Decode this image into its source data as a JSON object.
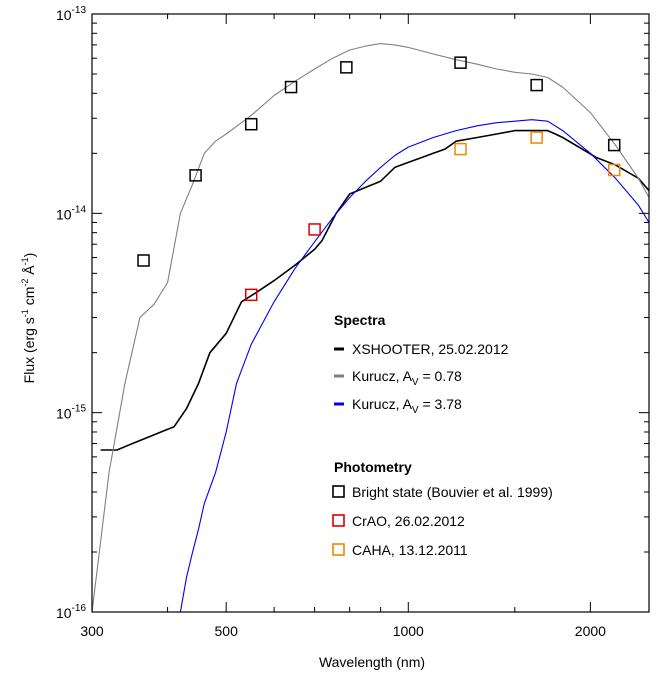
{
  "chart_data": {
    "type": "line",
    "xlabel": "Wavelength (nm)",
    "ylabel": "Flux (erg s⁻¹ cm⁻² Å⁻¹)",
    "xscale": "log",
    "yscale": "log",
    "xlim": [
      300,
      2500
    ],
    "ylim": [
      1e-16,
      1e-13
    ],
    "x_tick_labels": [
      "300",
      "500",
      "1000",
      "2000"
    ],
    "x_ticks": [
      300,
      500,
      1000,
      2000
    ],
    "y_tick_labels": [
      "10⁻¹⁶",
      "10⁻¹⁵",
      "10⁻¹⁴",
      "10⁻¹³"
    ],
    "y_ticks": [
      1e-16,
      1e-15,
      1e-14,
      1e-13
    ],
    "grid": false,
    "legend_placement": "lower-right",
    "series": [
      {
        "name": "XSHOOTER, 25.02.2012",
        "kind": "line",
        "color": "#000000",
        "x": [
          310,
          330,
          350,
          370,
          390,
          410,
          430,
          450,
          470,
          500,
          530,
          560,
          600,
          650,
          700,
          720,
          760,
          800,
          850,
          900,
          950,
          1000,
          1050,
          1100,
          1150,
          1200,
          1300,
          1400,
          1500,
          1600,
          1700,
          1750,
          1800,
          2050,
          2200,
          2400,
          2500
        ],
        "y": [
          6.5e-16,
          6.5e-16,
          7e-16,
          7.5e-16,
          8e-16,
          8.5e-16,
          1.05e-15,
          1.4e-15,
          2e-15,
          2.5e-15,
          3.6e-15,
          4e-15,
          4.6e-15,
          5.5e-15,
          6.6e-15,
          7.3e-15,
          1e-14,
          1.25e-14,
          1.35e-14,
          1.45e-14,
          1.7e-14,
          1.8e-14,
          1.9e-14,
          2e-14,
          2.1e-14,
          2.3e-14,
          2.4e-14,
          2.5e-14,
          2.6e-14,
          2.6e-14,
          2.6e-14,
          2.5e-14,
          2.4e-14,
          1.9e-14,
          1.75e-14,
          1.5e-14,
          1.3e-14
        ]
      },
      {
        "name": "Kurucz, A_V = 0.78",
        "kind": "line",
        "color": "#808080",
        "x": [
          300,
          320,
          340,
          360,
          380,
          400,
          420,
          440,
          460,
          480,
          500,
          550,
          600,
          650,
          700,
          750,
          800,
          850,
          900,
          950,
          1000,
          1100,
          1200,
          1300,
          1400,
          1500,
          1600,
          1700,
          1800,
          2000,
          2200,
          2400,
          2500
        ],
        "y": [
          1e-16,
          5e-16,
          1.4e-15,
          3e-15,
          3.5e-15,
          4.5e-15,
          1e-14,
          1.4e-14,
          2e-14,
          2.3e-14,
          2.5e-14,
          3.1e-14,
          3.9e-14,
          4.6e-14,
          5.3e-14,
          6e-14,
          6.6e-14,
          6.9e-14,
          7.1e-14,
          7e-14,
          6.8e-14,
          6.3e-14,
          5.9e-14,
          5.6e-14,
          5.3e-14,
          5.1e-14,
          5e-14,
          4.8e-14,
          4.3e-14,
          3.2e-14,
          2.2e-14,
          1.5e-14,
          1.2e-14
        ]
      },
      {
        "name": "Kurucz, A_V = 3.78",
        "kind": "line",
        "color": "#0000ee",
        "x": [
          420,
          430,
          440,
          450,
          460,
          480,
          500,
          520,
          550,
          600,
          650,
          700,
          750,
          800,
          850,
          900,
          950,
          1000,
          1100,
          1200,
          1300,
          1400,
          1500,
          1600,
          1700,
          1800,
          2000,
          2200,
          2400,
          2500
        ],
        "y": [
          1e-16,
          1.5e-16,
          2e-16,
          2.6e-16,
          3.5e-16,
          5e-16,
          8e-16,
          1.4e-15,
          2.2e-15,
          3.6e-15,
          5.3e-15,
          7.2e-15,
          9.5e-15,
          1.2e-14,
          1.45e-14,
          1.7e-14,
          1.95e-14,
          2.15e-14,
          2.4e-14,
          2.6e-14,
          2.75e-14,
          2.85e-14,
          2.9e-14,
          2.95e-14,
          2.9e-14,
          2.6e-14,
          2e-14,
          1.5e-14,
          1.1e-14,
          9e-15
        ]
      },
      {
        "name": "Bright state (Bouvier et al. 1999)",
        "kind": "points",
        "marker": "open-square",
        "color": "#000000",
        "x": [
          365,
          445,
          550,
          640,
          790,
          1220,
          1630,
          2190
        ],
        "y": [
          5.8e-15,
          1.55e-14,
          2.8e-14,
          4.3e-14,
          5.4e-14,
          5.7e-14,
          4.4e-14,
          2.2e-14
        ]
      },
      {
        "name": "CrAO, 26.02.2012",
        "kind": "points",
        "marker": "open-square",
        "color": "#dd0000",
        "x": [
          550,
          700
        ],
        "y": [
          3.9e-15,
          8.3e-15
        ]
      },
      {
        "name": "CAHA, 13.12.2011",
        "kind": "points",
        "marker": "open-square",
        "color": "#ee8800",
        "x": [
          1220,
          1630,
          2190
        ],
        "y": [
          2.1e-14,
          2.4e-14,
          1.65e-14
        ]
      }
    ]
  },
  "legend": {
    "spectra_heading": "Spectra",
    "photometry_heading": "Photometry",
    "items": [
      {
        "label": "XSHOOTER, 25.02.2012",
        "color": "#000000",
        "kind": "line"
      },
      {
        "label_main": "Kurucz, A",
        "label_sub": "V",
        "label_tail": " = 0.78",
        "color": "#808080",
        "kind": "line"
      },
      {
        "label_main": "Kurucz, A",
        "label_sub": "V",
        "label_tail": " = 3.78",
        "color": "#0000ee",
        "kind": "line"
      },
      {
        "label": "Bright state (Bouvier et al. 1999)",
        "color": "#000000",
        "kind": "square"
      },
      {
        "label": "CrAO, 26.02.2012",
        "color": "#dd0000",
        "kind": "square"
      },
      {
        "label": "CAHA, 13.12.2011",
        "color": "#ee8800",
        "kind": "square"
      }
    ]
  },
  "axis_text": {
    "ylabel_main": "Flux (erg s",
    "ylabel_sup1": "-1",
    "ylabel_mid": " cm",
    "ylabel_sup2": "-2",
    "ylabel_ang": " Å",
    "ylabel_sup3": "-1",
    "ylabel_end": ")",
    "xlabel": "Wavelength (nm)",
    "ytick_base": "10",
    "ytick_exps": [
      "-16",
      "-15",
      "-14",
      "-13"
    ]
  }
}
